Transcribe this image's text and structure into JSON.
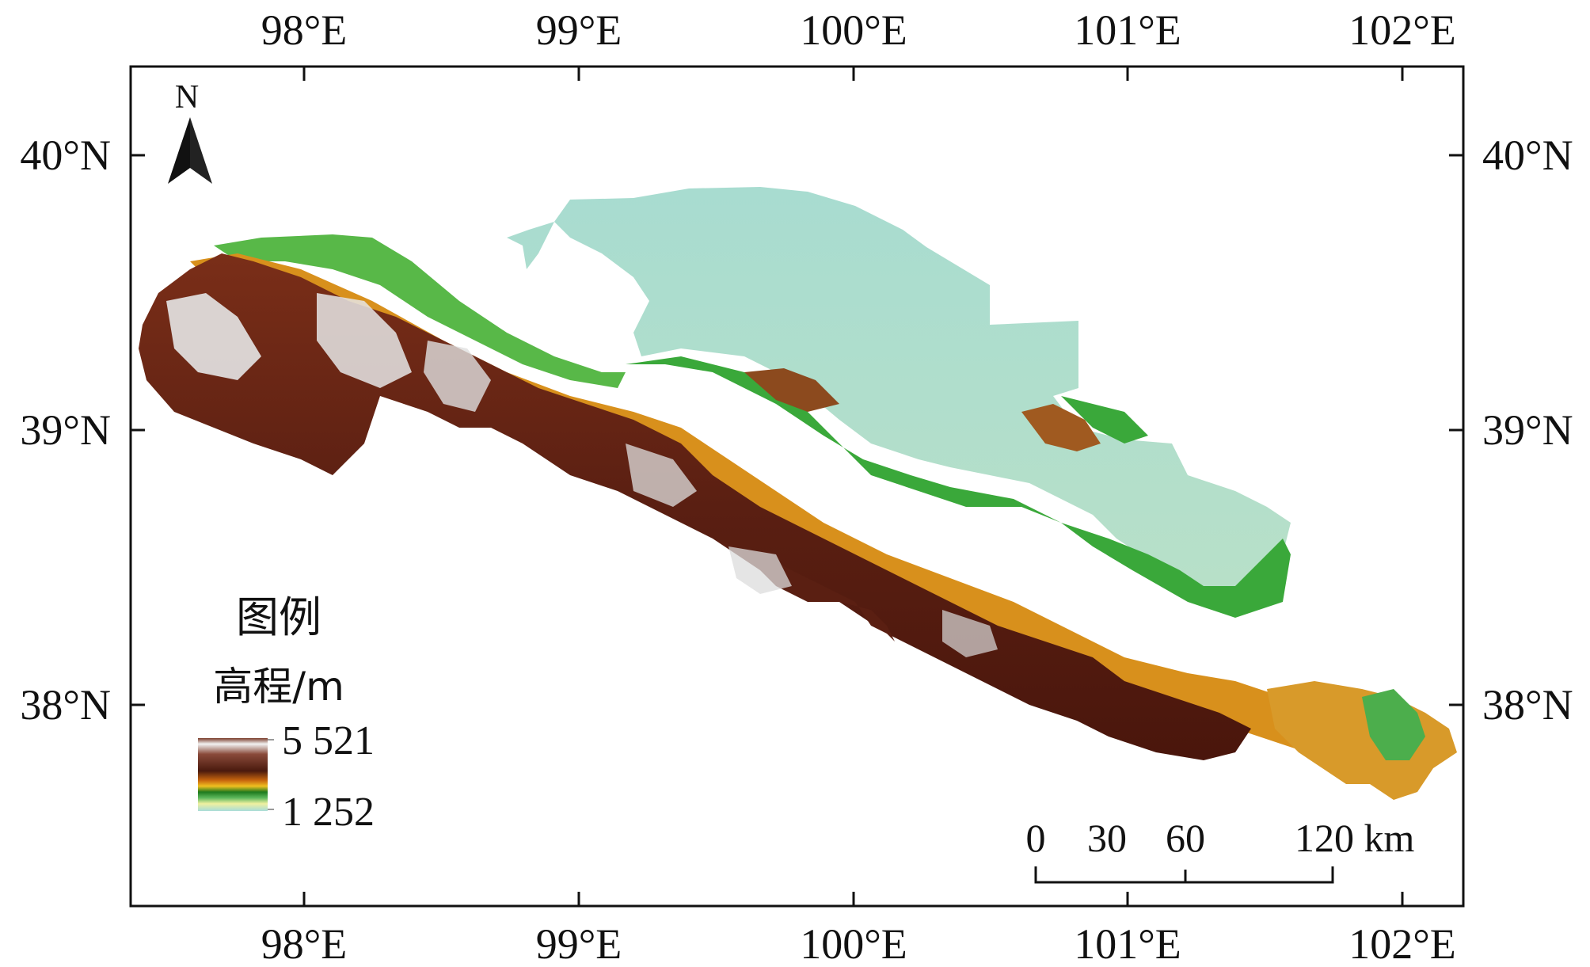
{
  "axes": {
    "longitude_labels": [
      "98°E",
      "99°E",
      "100°E",
      "101°E",
      "102°E"
    ],
    "latitude_labels": [
      "40°N",
      "39°N",
      "38°N"
    ]
  },
  "north_arrow": {
    "label": "N",
    "icon": "north-arrow-icon"
  },
  "legend": {
    "title": "图例",
    "subtitle": "高程/m",
    "max_label": "5 521",
    "min_label": "1 252",
    "gradient_colors": [
      "#5a1f12",
      "#f0f0f0",
      "#6b2a14",
      "#c85a10",
      "#f0c020",
      "#2a9a2a",
      "#e8f0a0",
      "#a8dcd8"
    ]
  },
  "scale_bar": {
    "labels": [
      "0",
      "30",
      "60",
      "120 km"
    ]
  },
  "colors": {
    "plain": "#a8dcd8",
    "oasis": "#3aa83a",
    "foothill": "#e0a020",
    "mountain": "#5a1f12",
    "snow": "#e8e8e8"
  }
}
